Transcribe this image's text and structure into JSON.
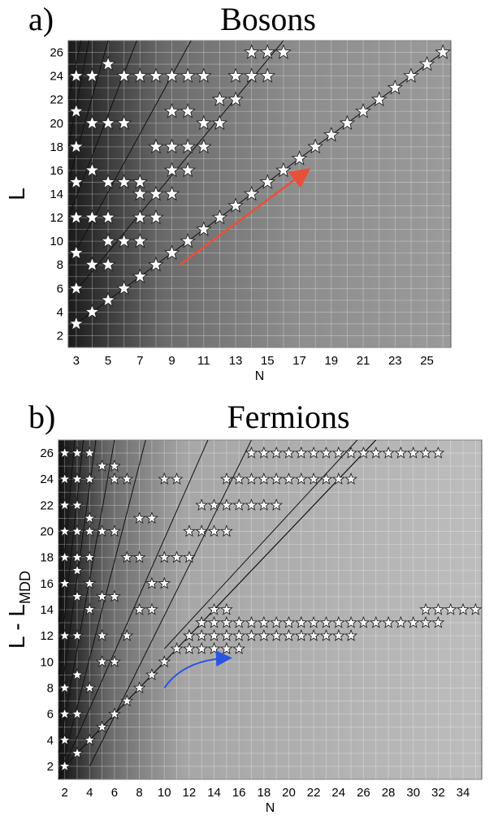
{
  "chart_data": [
    {
      "type": "scatter",
      "panel_label": "a)",
      "title": "Bosons",
      "xlabel": "N",
      "ylabel": "L",
      "ylabel_sub": "",
      "xlim": [
        2.5,
        26.5
      ],
      "ylim": [
        1,
        27
      ],
      "xticks": [
        3,
        5,
        7,
        9,
        11,
        13,
        15,
        17,
        19,
        21,
        23,
        25
      ],
      "yticks": [
        2,
        4,
        6,
        8,
        10,
        12,
        14,
        16,
        18,
        20,
        22,
        24,
        26
      ],
      "grid": true,
      "background": "gradient dark (left) to gray (right)",
      "marker": "star",
      "boundary_lines": [
        {
          "x": [
            3,
            26
          ],
          "y": [
            3,
            26
          ]
        },
        {
          "x": [
            2.5,
            16
          ],
          "y": [
            5,
            27
          ]
        },
        {
          "x": [
            2.5,
            10.2
          ],
          "y": [
            8,
            27
          ]
        },
        {
          "x": [
            2.5,
            6.8
          ],
          "y": [
            12,
            27
          ]
        },
        {
          "x": [
            2.5,
            5.0
          ],
          "y": [
            15,
            27
          ]
        },
        {
          "x": [
            2.5,
            3.8
          ],
          "y": [
            18,
            27
          ]
        },
        {
          "x": [
            2.5,
            3.3
          ],
          "y": [
            22,
            27
          ]
        }
      ],
      "arrow": {
        "from": [
          9.5,
          8
        ],
        "to": [
          17.5,
          16
        ],
        "color": "#e8503a"
      },
      "series": [
        {
          "points": [
            [
              3,
              3
            ],
            [
              4,
              4
            ],
            [
              5,
              5
            ],
            [
              6,
              6
            ],
            [
              7,
              7
            ],
            [
              8,
              8
            ],
            [
              9,
              9
            ],
            [
              10,
              10
            ],
            [
              11,
              11
            ],
            [
              12,
              12
            ],
            [
              13,
              13
            ],
            [
              14,
              14
            ],
            [
              15,
              15
            ],
            [
              16,
              16
            ],
            [
              17,
              17
            ],
            [
              18,
              18
            ],
            [
              19,
              19
            ],
            [
              20,
              20
            ],
            [
              21,
              21
            ],
            [
              22,
              22
            ],
            [
              23,
              23
            ],
            [
              24,
              24
            ],
            [
              25,
              25
            ],
            [
              26,
              26
            ],
            [
              3,
              6
            ],
            [
              4,
              8
            ],
            [
              5,
              8
            ],
            [
              5,
              10
            ],
            [
              6,
              10
            ],
            [
              7,
              10
            ],
            [
              3,
              9
            ],
            [
              3,
              12
            ],
            [
              4,
              12
            ],
            [
              5,
              12
            ],
            [
              7,
              12
            ],
            [
              8,
              12
            ],
            [
              3,
              15
            ],
            [
              5,
              15
            ],
            [
              6,
              15
            ],
            [
              7,
              15
            ],
            [
              7,
              14
            ],
            [
              8,
              14
            ],
            [
              9,
              14
            ],
            [
              4,
              16
            ],
            [
              9,
              16
            ],
            [
              10,
              16
            ],
            [
              3,
              18
            ],
            [
              8,
              18
            ],
            [
              9,
              18
            ],
            [
              10,
              18
            ],
            [
              11,
              18
            ],
            [
              4,
              20
            ],
            [
              5,
              20
            ],
            [
              6,
              20
            ],
            [
              11,
              20
            ],
            [
              12,
              20
            ],
            [
              3,
              21
            ],
            [
              9,
              21
            ],
            [
              10,
              21
            ],
            [
              12,
              22
            ],
            [
              13,
              22
            ],
            [
              3,
              24
            ],
            [
              4,
              24
            ],
            [
              6,
              24
            ],
            [
              7,
              24
            ],
            [
              8,
              24
            ],
            [
              9,
              24
            ],
            [
              10,
              24
            ],
            [
              11,
              24
            ],
            [
              13,
              24
            ],
            [
              14,
              24
            ],
            [
              15,
              24
            ],
            [
              5,
              25
            ],
            [
              14,
              26
            ],
            [
              15,
              26
            ],
            [
              16,
              26
            ]
          ]
        }
      ]
    },
    {
      "type": "scatter",
      "panel_label": "b)",
      "title": "Fermions",
      "xlabel": "N",
      "ylabel": "L - L",
      "ylabel_sub": "MDD",
      "xlim": [
        1.5,
        35.5
      ],
      "ylim": [
        1,
        27
      ],
      "xticks": [
        2,
        4,
        6,
        8,
        10,
        12,
        14,
        16,
        18,
        20,
        22,
        24,
        26,
        28,
        30,
        32,
        34
      ],
      "yticks": [
        2,
        4,
        6,
        8,
        10,
        12,
        14,
        16,
        18,
        20,
        22,
        24,
        26
      ],
      "grid": true,
      "background": "gradient dark (left) to light gray (right)",
      "marker": "star",
      "boundary_lines": [
        {
          "x": [
            1.5,
            27
          ],
          "y": [
            1.5,
            27
          ]
        },
        {
          "x": [
            2,
            27
          ],
          "y": [
            2,
            27
          ]
        },
        {
          "x": [
            4,
            17
          ],
          "y": [
            2,
            27
          ]
        },
        {
          "x": [
            10,
            25.5
          ],
          "y": [
            11,
            27
          ]
        },
        {
          "x": [
            1.5,
            13.5
          ],
          "y": [
            1,
            27
          ]
        },
        {
          "x": [
            1.5,
            8.5
          ],
          "y": [
            1,
            27
          ]
        },
        {
          "x": [
            1.5,
            6
          ],
          "y": [
            3,
            27
          ]
        },
        {
          "x": [
            1.5,
            4.5
          ],
          "y": [
            6,
            27
          ]
        },
        {
          "x": [
            1.5,
            3.5
          ],
          "y": [
            9,
            27
          ]
        },
        {
          "x": [
            1.5,
            2.8
          ],
          "y": [
            13,
            27
          ]
        }
      ],
      "arrow": {
        "from": [
          10,
          8
        ],
        "to": [
          15.2,
          10.3
        ],
        "color": "#2a55e0"
      },
      "series": [
        {
          "points": [
            [
              2,
              2
            ],
            [
              3,
              3
            ],
            [
              4,
              4
            ],
            [
              5,
              5
            ],
            [
              6,
              6
            ],
            [
              7,
              7
            ],
            [
              8,
              8
            ],
            [
              9,
              9
            ],
            [
              10,
              10
            ],
            [
              11,
              11
            ],
            [
              12,
              12
            ],
            [
              13,
              13
            ],
            [
              14,
              14
            ],
            [
              2,
              4
            ],
            [
              2,
              6
            ],
            [
              3,
              6
            ],
            [
              2,
              8
            ],
            [
              4,
              8
            ],
            [
              3,
              9
            ],
            [
              5,
              10
            ],
            [
              6,
              10
            ],
            [
              2,
              12
            ],
            [
              3,
              12
            ],
            [
              5,
              12
            ],
            [
              7,
              12
            ],
            [
              8,
              14
            ],
            [
              9,
              14
            ],
            [
              4,
              14
            ],
            [
              3,
              15
            ],
            [
              5,
              15
            ],
            [
              6,
              15
            ],
            [
              2,
              16
            ],
            [
              4,
              16
            ],
            [
              9,
              16
            ],
            [
              10,
              16
            ],
            [
              3,
              17
            ],
            [
              2,
              18
            ],
            [
              3,
              18
            ],
            [
              4,
              18
            ],
            [
              7,
              18
            ],
            [
              8,
              18
            ],
            [
              10,
              18
            ],
            [
              11,
              18
            ],
            [
              12,
              18
            ],
            [
              2,
              20
            ],
            [
              3,
              20
            ],
            [
              4,
              20
            ],
            [
              5,
              20
            ],
            [
              6,
              20
            ],
            [
              12,
              20
            ],
            [
              13,
              20
            ],
            [
              14,
              20
            ],
            [
              15,
              20
            ],
            [
              4,
              21
            ],
            [
              8,
              21
            ],
            [
              9,
              21
            ],
            [
              2,
              22
            ],
            [
              3,
              22
            ],
            [
              13,
              22
            ],
            [
              14,
              22
            ],
            [
              15,
              22
            ],
            [
              16,
              22
            ],
            [
              17,
              22
            ],
            [
              18,
              22
            ],
            [
              19,
              22
            ],
            [
              2,
              24
            ],
            [
              3,
              24
            ],
            [
              4,
              24
            ],
            [
              6,
              24
            ],
            [
              7,
              24
            ],
            [
              10,
              24
            ],
            [
              11,
              24
            ],
            [
              15,
              24
            ],
            [
              16,
              24
            ],
            [
              17,
              24
            ],
            [
              18,
              24
            ],
            [
              19,
              24
            ],
            [
              20,
              24
            ],
            [
              21,
              24
            ],
            [
              22,
              24
            ],
            [
              23,
              24
            ],
            [
              24,
              24
            ],
            [
              25,
              24
            ],
            [
              5,
              25
            ],
            [
              6,
              25
            ],
            [
              2,
              26
            ],
            [
              3,
              26
            ],
            [
              4,
              26
            ],
            [
              17,
              26
            ],
            [
              18,
              26
            ],
            [
              19,
              26
            ],
            [
              20,
              26
            ],
            [
              21,
              26
            ],
            [
              22,
              26
            ],
            [
              23,
              26
            ],
            [
              24,
              26
            ],
            [
              25,
              26
            ],
            [
              26,
              26
            ],
            [
              27,
              26
            ],
            [
              28,
              26
            ],
            [
              29,
              26
            ],
            [
              30,
              26
            ],
            [
              31,
              26
            ],
            [
              32,
              26
            ],
            [
              12,
              11
            ],
            [
              13,
              11
            ],
            [
              14,
              11
            ],
            [
              15,
              11
            ],
            [
              16,
              11
            ],
            [
              12,
              12
            ],
            [
              13,
              12
            ],
            [
              14,
              12
            ],
            [
              15,
              12
            ],
            [
              16,
              12
            ],
            [
              17,
              12
            ],
            [
              18,
              12
            ],
            [
              19,
              12
            ],
            [
              20,
              12
            ],
            [
              21,
              12
            ],
            [
              22,
              12
            ],
            [
              23,
              12
            ],
            [
              24,
              12
            ],
            [
              25,
              12
            ],
            [
              13,
              13
            ],
            [
              14,
              13
            ],
            [
              15,
              13
            ],
            [
              16,
              13
            ],
            [
              17,
              13
            ],
            [
              18,
              13
            ],
            [
              19,
              13
            ],
            [
              20,
              13
            ],
            [
              21,
              13
            ],
            [
              22,
              13
            ],
            [
              23,
              13
            ],
            [
              24,
              13
            ],
            [
              25,
              13
            ],
            [
              26,
              13
            ],
            [
              27,
              13
            ],
            [
              28,
              13
            ],
            [
              29,
              13
            ],
            [
              30,
              13
            ],
            [
              31,
              13
            ],
            [
              32,
              13
            ],
            [
              15,
              14
            ],
            [
              31,
              14
            ],
            [
              32,
              14
            ],
            [
              33,
              14
            ],
            [
              34,
              14
            ],
            [
              35,
              14
            ]
          ]
        }
      ]
    }
  ]
}
